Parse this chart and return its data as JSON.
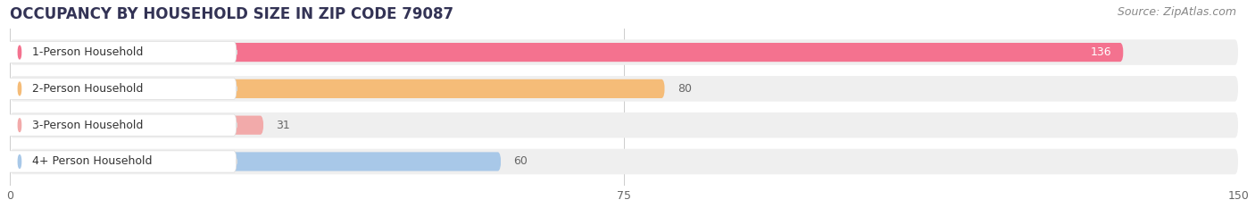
{
  "title": "OCCUPANCY BY HOUSEHOLD SIZE IN ZIP CODE 79087",
  "source": "Source: ZipAtlas.com",
  "categories": [
    "1-Person Household",
    "2-Person Household",
    "3-Person Household",
    "4+ Person Household"
  ],
  "values": [
    136,
    80,
    31,
    60
  ],
  "bar_colors": [
    "#F4728F",
    "#F5BC78",
    "#F2AAAA",
    "#A8C8E8"
  ],
  "bar_bg_color": "#EFEFEF",
  "xlim": [
    0,
    150
  ],
  "xticks": [
    0,
    75,
    150
  ],
  "figsize": [
    14.06,
    2.33
  ],
  "dpi": 100,
  "label_color_inside": "#FFFFFF",
  "label_color_outside": "#666666",
  "title_fontsize": 12,
  "source_fontsize": 9,
  "bar_label_fontsize": 9,
  "category_fontsize": 9,
  "tick_fontsize": 9,
  "bar_height": 0.52,
  "bg_bar_height": 0.7
}
